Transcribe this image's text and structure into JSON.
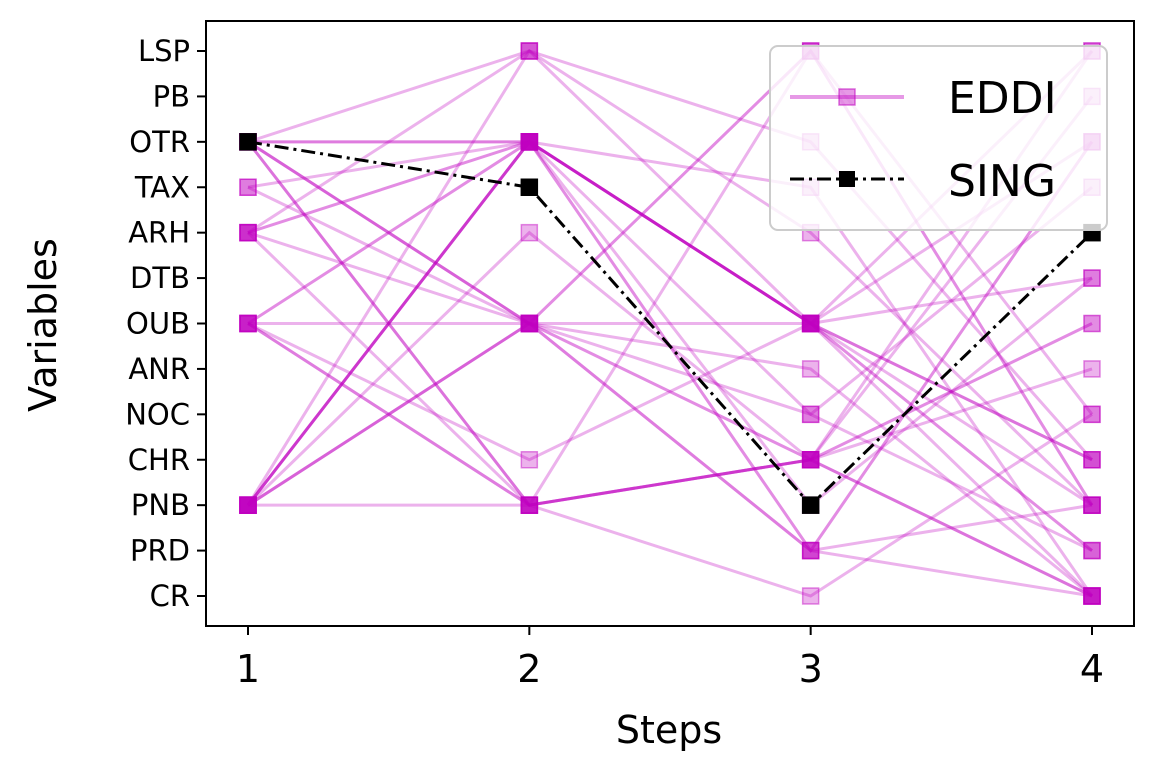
{
  "chart_data": {
    "type": "line",
    "xlabel": "Steps",
    "ylabel": "Variables",
    "x": [
      1,
      2,
      3,
      4
    ],
    "y_categories": [
      "CR",
      "PRD",
      "PNB",
      "CHR",
      "NOC",
      "ANR",
      "OUB",
      "DTB",
      "ARH",
      "TAX",
      "OTR",
      "PB",
      "LSP"
    ],
    "legend": {
      "placement": "top-right",
      "entries": [
        "EDDI",
        "SING"
      ]
    },
    "colors": {
      "eddi": "#c000c0",
      "sing": "#000000"
    },
    "grid": false,
    "series": [
      {
        "name": "SING",
        "style": "dashdot",
        "values": [
          "OTR",
          "TAX",
          "PNB",
          "ARH"
        ]
      },
      {
        "name": "EDDI",
        "values": [
          "OTR",
          "LSP",
          "OUB",
          "CR"
        ],
        "alpha": 0.3
      },
      {
        "name": "EDDI",
        "values": [
          "OTR",
          "OTR",
          "OUB",
          "PNB"
        ],
        "alpha": 0.3
      },
      {
        "name": "EDDI",
        "values": [
          "OTR",
          "OUB",
          "CHR",
          "OUB"
        ],
        "alpha": 0.45
      },
      {
        "name": "EDDI",
        "values": [
          "OTR",
          "PNB",
          "CHR",
          "CR"
        ],
        "alpha": 0.55
      },
      {
        "name": "EDDI",
        "values": [
          "OTR",
          "OTR",
          "OUB",
          "LSP"
        ],
        "alpha": 0.3
      },
      {
        "name": "EDDI",
        "values": [
          "TAX",
          "OTR",
          "NOC",
          "PRD"
        ],
        "alpha": 0.3
      },
      {
        "name": "EDDI",
        "values": [
          "TAX",
          "OUB",
          "PRD",
          "CR"
        ],
        "alpha": 0.3
      },
      {
        "name": "EDDI",
        "values": [
          "ARH",
          "LSP",
          "OTR",
          "CHR"
        ],
        "alpha": 0.3
      },
      {
        "name": "EDDI",
        "values": [
          "ARH",
          "OTR",
          "OUB",
          "PRD"
        ],
        "alpha": 0.45
      },
      {
        "name": "EDDI",
        "values": [
          "ARH",
          "PNB",
          "CHR",
          "LSP"
        ],
        "alpha": 0.3
      },
      {
        "name": "EDDI",
        "values": [
          "ARH",
          "OUB",
          "PRD",
          "PNB"
        ],
        "alpha": 0.3
      },
      {
        "name": "EDDI",
        "values": [
          "OUB",
          "OTR",
          "PRD",
          "OTR"
        ],
        "alpha": 0.45
      },
      {
        "name": "EDDI",
        "values": [
          "OUB",
          "PNB",
          "CR",
          "NOC"
        ],
        "alpha": 0.3
      },
      {
        "name": "EDDI",
        "values": [
          "OUB",
          "CHR",
          "OUB",
          "DTB"
        ],
        "alpha": 0.3
      },
      {
        "name": "EDDI",
        "values": [
          "OUB",
          "OUB",
          "ANR",
          "CR"
        ],
        "alpha": 0.3
      },
      {
        "name": "EDDI",
        "values": [
          "PNB",
          "OTR",
          "OUB",
          "CHR"
        ],
        "alpha": 0.55
      },
      {
        "name": "EDDI",
        "values": [
          "PNB",
          "OUB",
          "LSP",
          "PNB"
        ],
        "alpha": 0.45
      },
      {
        "name": "EDDI",
        "values": [
          "PNB",
          "PNB",
          "CHR",
          "ANR"
        ],
        "alpha": 0.3
      },
      {
        "name": "EDDI",
        "values": [
          "PNB",
          "ARH",
          "CHR",
          "PB"
        ],
        "alpha": 0.3
      },
      {
        "name": "EDDI",
        "values": [
          "PNB",
          "OTR",
          "PNB",
          "DTB"
        ],
        "alpha": 0.3
      },
      {
        "name": "EDDI",
        "values": [
          "PNB",
          "LSP",
          "ARH",
          "PNB"
        ],
        "alpha": 0.3
      },
      {
        "name": "EDDI",
        "values": [
          "PNB",
          "OTR",
          "TAX",
          "CR"
        ],
        "alpha": 0.3
      },
      {
        "name": "EDDI",
        "values": [
          "PNB",
          "OUB",
          "NOC",
          "TAX"
        ],
        "alpha": 0.3
      },
      {
        "name": "EDDI",
        "values": [
          "OTR",
          "OUB",
          "OUB",
          "OTR"
        ],
        "alpha": 0.3
      },
      {
        "name": "EDDI",
        "values": [
          "OUB",
          "PNB",
          "LSP",
          "NOC"
        ],
        "alpha": 0.3
      }
    ]
  }
}
